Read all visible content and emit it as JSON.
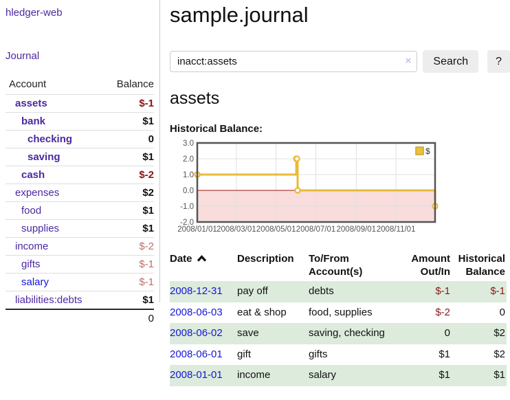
{
  "colors": {
    "link_purple": "#4b28a0",
    "link_blue": "#1616d6",
    "negative_strong": "#8b1212",
    "negative_muted": "#c06d68",
    "row_stripe_green": "#dcebdc",
    "accent_gold": "#e8ba38"
  },
  "sidebar": {
    "app_title": "hledger-web",
    "journal_link": "Journal",
    "accounts": {
      "header": {
        "account": "Account",
        "balance": "Balance"
      },
      "rows": [
        {
          "name": "assets",
          "indent": 1,
          "bold": true,
          "balance": "$-1",
          "balance_style": "neg-strong"
        },
        {
          "name": "bank",
          "indent": 2,
          "bold": true,
          "balance": "$1",
          "balance_style": "pos"
        },
        {
          "name": "checking",
          "indent": 3,
          "bold": true,
          "balance": "0",
          "balance_style": "pos"
        },
        {
          "name": "saving",
          "indent": 3,
          "bold": true,
          "balance": "$1",
          "balance_style": "pos"
        },
        {
          "name": "cash",
          "indent": 2,
          "bold": true,
          "balance": "$-2",
          "balance_style": "neg-strong"
        },
        {
          "name": "expenses",
          "indent": 1,
          "bold": false,
          "balance": "$2",
          "balance_style": "pos"
        },
        {
          "name": "food",
          "indent": 2,
          "bold": false,
          "balance": "$1",
          "balance_style": "pos"
        },
        {
          "name": "supplies",
          "indent": 2,
          "bold": false,
          "balance": "$1",
          "balance_style": "pos"
        },
        {
          "name": "income",
          "indent": 1,
          "bold": false,
          "balance": "$-2",
          "balance_style": "neg-muted"
        },
        {
          "name": "gifts",
          "indent": 2,
          "bold": false,
          "balance": "$-1",
          "balance_style": "neg-muted"
        },
        {
          "name": "salary",
          "indent": 2,
          "bold": false,
          "link_color": "blue",
          "balance": "$-1",
          "balance_style": "neg-muted"
        },
        {
          "name": "liabilities:debts",
          "indent": 1,
          "bold": false,
          "balance": "$1",
          "balance_style": "pos"
        }
      ],
      "total": "0"
    }
  },
  "main": {
    "title": "sample.journal",
    "search": {
      "value": "inacct:assets",
      "clear_icon": "×",
      "search_button": "Search",
      "help_button": "?"
    },
    "account_heading": "assets",
    "section_label": "Historical Balance:",
    "register": {
      "headers": {
        "date": "Date",
        "description": "Description",
        "accounts": "To/From Account(s)",
        "amount": "Amount Out/In",
        "balance": "Historical Balance"
      },
      "sort_column": "Date",
      "sort_direction": "ascending",
      "rows": [
        {
          "date": "2008-12-31",
          "description": "pay off",
          "accounts": "debts",
          "amount": "$-1",
          "amount_neg": true,
          "balance": "$-1",
          "balance_neg": true
        },
        {
          "date": "2008-06-03",
          "description": "eat & shop",
          "accounts": "food, supplies",
          "amount": "$-2",
          "amount_neg": true,
          "balance": "0",
          "balance_neg": false
        },
        {
          "date": "2008-06-02",
          "description": "save",
          "accounts": "saving, checking",
          "amount": "0",
          "amount_neg": false,
          "balance": "$2",
          "balance_neg": false
        },
        {
          "date": "2008-06-01",
          "description": "gift",
          "accounts": "gifts",
          "amount": "$1",
          "amount_neg": false,
          "balance": "$2",
          "balance_neg": false
        },
        {
          "date": "2008-01-01",
          "description": "income",
          "accounts": "salary",
          "amount": "$1",
          "amount_neg": false,
          "balance": "$1",
          "balance_neg": false
        }
      ]
    }
  },
  "chart_data": {
    "type": "line",
    "line_style": "steps",
    "title": "Historical Balance:",
    "legend": {
      "label": "$",
      "position": "top-right"
    },
    "x_range": [
      "2008/01/01",
      "2008/12/31"
    ],
    "ylim": [
      -2,
      3
    ],
    "y_ticks": [
      "3.0",
      "2.0",
      "1.0",
      "0.0",
      "-1.0",
      "-2.0"
    ],
    "x_ticks": [
      "2008/01/01",
      "2008/03/01",
      "2008/05/01",
      "2008/07/01",
      "2008/09/01",
      "2008/11/01"
    ],
    "series": [
      {
        "name": "$",
        "color": "#e8ba38",
        "points": [
          [
            "2008/01/01",
            1
          ],
          [
            "2008/06/01",
            2
          ],
          [
            "2008/06/02",
            2
          ],
          [
            "2008/06/03",
            0
          ],
          [
            "2008/12/31",
            -1
          ]
        ]
      }
    ],
    "grid": true,
    "grid_color": "#e0e0e0",
    "border_color": "#545454",
    "tick_label_color": "#545454",
    "negative_region_color": "#f9dcdc",
    "zero_line_color": "#9c1515"
  }
}
